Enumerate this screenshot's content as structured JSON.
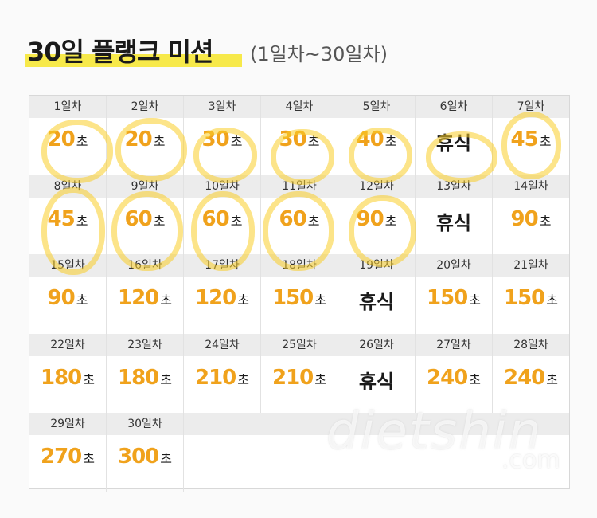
{
  "title": {
    "main": "30일 플랭크 미션",
    "sub": "(1일차~30일차)"
  },
  "days": [
    {
      "label": "1일차",
      "value": "20",
      "unit": "초"
    },
    {
      "label": "2일차",
      "value": "20",
      "unit": "초"
    },
    {
      "label": "3일차",
      "value": "30",
      "unit": "초"
    },
    {
      "label": "4일차",
      "value": "30",
      "unit": "초"
    },
    {
      "label": "5일차",
      "value": "40",
      "unit": "초"
    },
    {
      "label": "6일차",
      "rest": "휴식"
    },
    {
      "label": "7일차",
      "value": "45",
      "unit": "초"
    },
    {
      "label": "8일차",
      "value": "45",
      "unit": "초"
    },
    {
      "label": "9일차",
      "value": "60",
      "unit": "초"
    },
    {
      "label": "10일차",
      "value": "60",
      "unit": "초"
    },
    {
      "label": "11일차",
      "value": "60",
      "unit": "초"
    },
    {
      "label": "12일차",
      "value": "90",
      "unit": "초"
    },
    {
      "label": "13일차",
      "rest": "휴식"
    },
    {
      "label": "14일차",
      "value": "90",
      "unit": "초"
    },
    {
      "label": "15일차",
      "value": "90",
      "unit": "초"
    },
    {
      "label": "16일차",
      "value": "120",
      "unit": "초"
    },
    {
      "label": "17일차",
      "value": "120",
      "unit": "초"
    },
    {
      "label": "18일차",
      "value": "150",
      "unit": "초"
    },
    {
      "label": "19일차",
      "rest": "휴식"
    },
    {
      "label": "20일차",
      "value": "150",
      "unit": "초"
    },
    {
      "label": "21일차",
      "value": "150",
      "unit": "초"
    },
    {
      "label": "22일차",
      "value": "180",
      "unit": "초"
    },
    {
      "label": "23일차",
      "value": "180",
      "unit": "초"
    },
    {
      "label": "24일차",
      "value": "210",
      "unit": "초"
    },
    {
      "label": "25일차",
      "value": "210",
      "unit": "초"
    },
    {
      "label": "26일차",
      "rest": "휴식"
    },
    {
      "label": "27일차",
      "value": "240",
      "unit": "초"
    },
    {
      "label": "28일차",
      "value": "240",
      "unit": "초"
    },
    {
      "label": "29일차",
      "value": "270",
      "unit": "초"
    },
    {
      "label": "30일차",
      "value": "300",
      "unit": "초"
    }
  ],
  "watermark": {
    "text": "dietshin",
    "suffix": ".com"
  },
  "highlight_color": "#f7e94a",
  "number_color": "#f0a21c"
}
